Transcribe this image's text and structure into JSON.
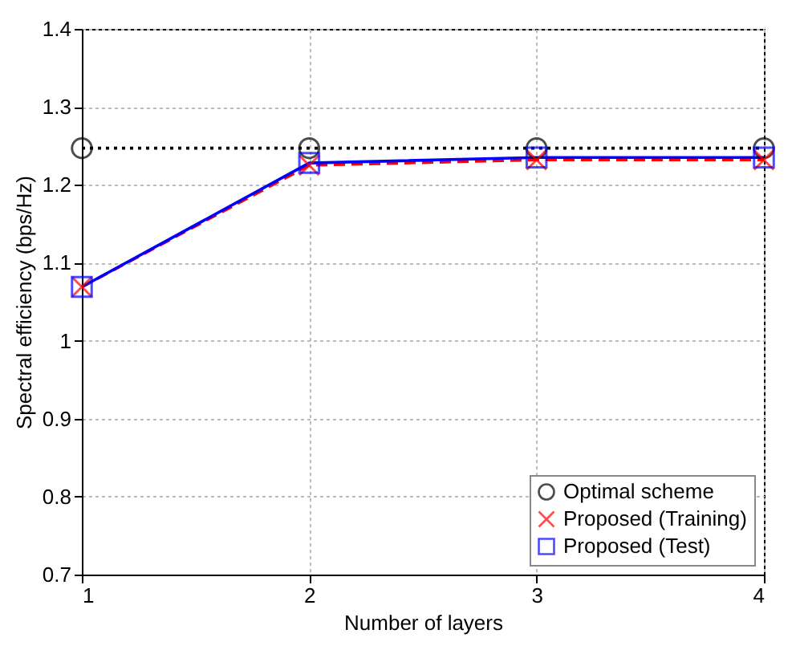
{
  "chart_data": {
    "type": "line",
    "xlabel": "Number of layers",
    "ylabel": "Spectral efficiency (bps/Hz)",
    "x": [
      1,
      2,
      3,
      4
    ],
    "xlim": [
      1,
      4
    ],
    "xticks": [
      1,
      2,
      3,
      4
    ],
    "ylim": [
      0.7,
      1.4
    ],
    "yticks": [
      0.7,
      0.8,
      0.9,
      1,
      1.1,
      1.2,
      1.3,
      1.4
    ],
    "grid": true,
    "legend": "bottom right",
    "series": [
      {
        "name": "Optimal scheme",
        "color": "#000000",
        "marker": "circle",
        "line_style": "dotted",
        "values": [
          1.247,
          1.247,
          1.247,
          1.247
        ]
      },
      {
        "name": "Proposed (Training)",
        "color": "#ff0000",
        "marker": "cross",
        "line_style": "dashed",
        "values": [
          1.069,
          1.225,
          1.232,
          1.232
        ]
      },
      {
        "name": "Proposed (Test)",
        "color": "#0000ff",
        "marker": "square",
        "line_style": "solid",
        "values": [
          1.069,
          1.228,
          1.235,
          1.235
        ]
      }
    ]
  }
}
